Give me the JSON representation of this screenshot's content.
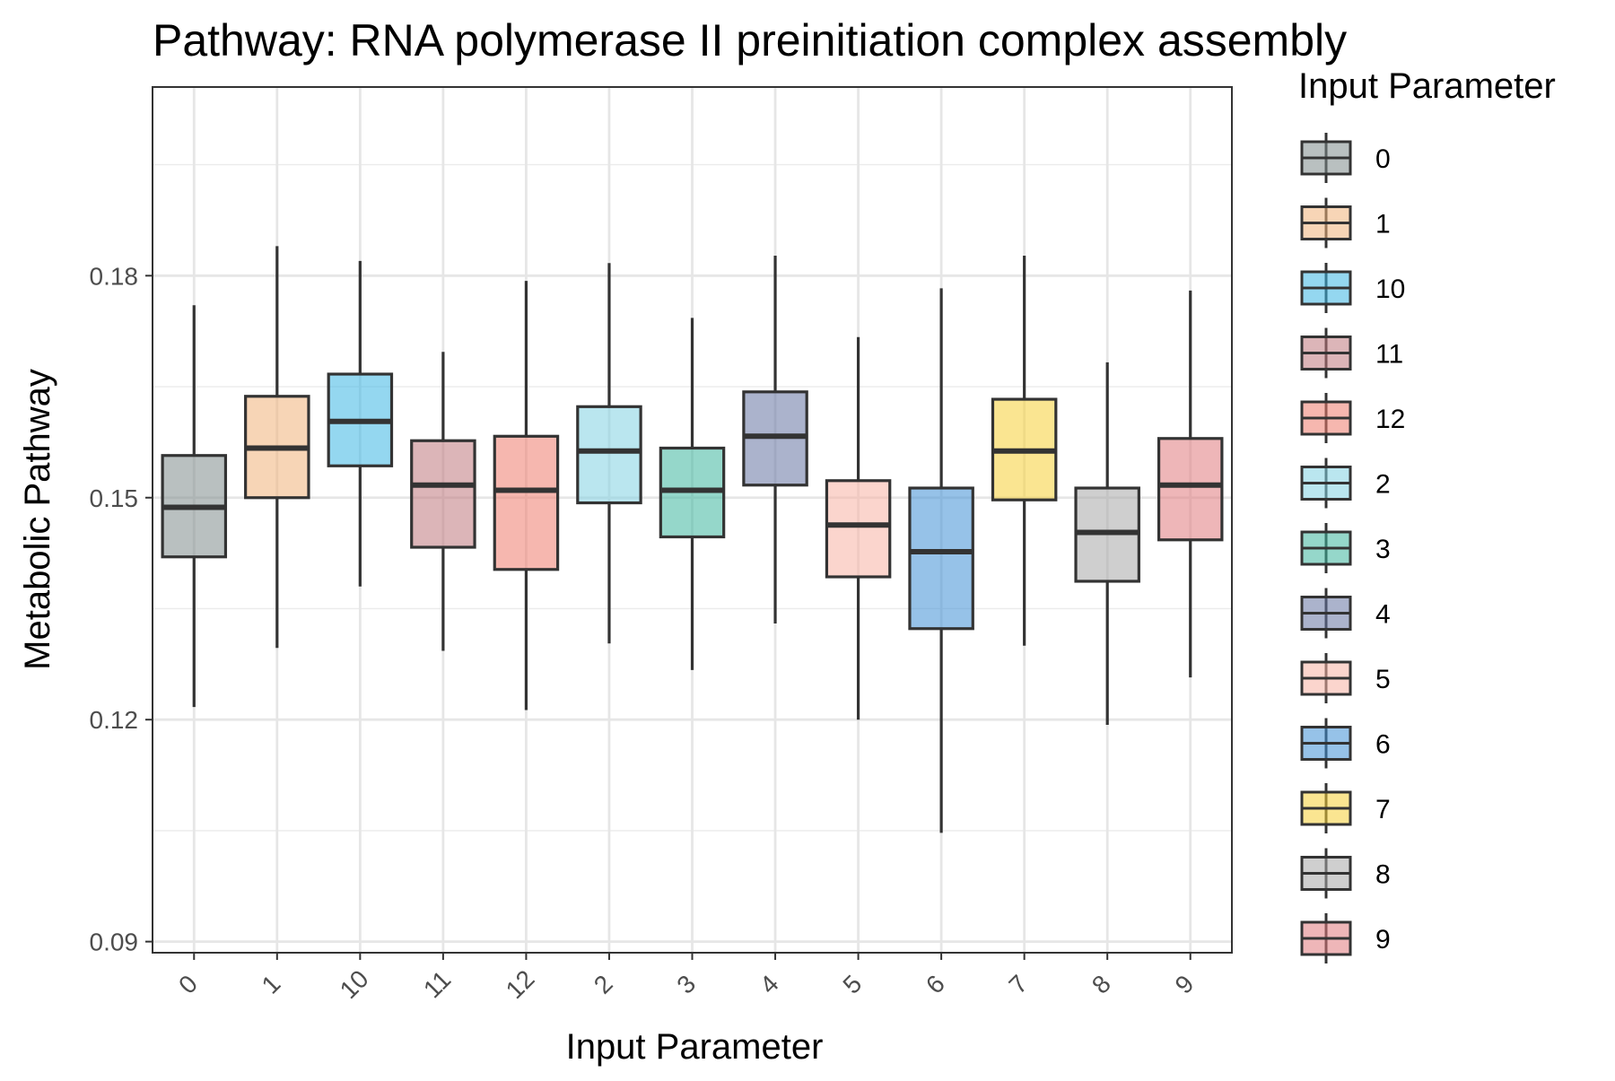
{
  "chart_data": {
    "type": "box",
    "title": "Pathway: RNA polymerase II preinitiation complex assembly",
    "xlabel": "Input Parameter",
    "ylabel": "Metabolic Pathway",
    "ylim": [
      0.0885,
      0.2055
    ],
    "yticks": [
      0.09,
      0.12,
      0.15,
      0.18
    ],
    "ytick_labels": [
      "0.09",
      "0.12",
      "0.15",
      "0.18"
    ],
    "grid": true,
    "legend": {
      "title": "Input Parameter",
      "position": "right"
    },
    "categories": [
      "0",
      "1",
      "10",
      "11",
      "12",
      "2",
      "3",
      "4",
      "5",
      "6",
      "7",
      "8",
      "9"
    ],
    "series": [
      {
        "category": "0",
        "color": "#7F8C8D",
        "whisker_low": 0.1217,
        "q1": 0.142,
        "median": 0.1487,
        "q3": 0.1557,
        "whisker_high": 0.176
      },
      {
        "category": "1",
        "color": "#F0B27A",
        "whisker_low": 0.1297,
        "q1": 0.15,
        "median": 0.1567,
        "q3": 0.1637,
        "whisker_high": 0.184
      },
      {
        "category": "10",
        "color": "#3DB7E4",
        "whisker_low": 0.138,
        "q1": 0.1543,
        "median": 0.1603,
        "q3": 0.1667,
        "whisker_high": 0.182
      },
      {
        "category": "11",
        "color": "#C0787E",
        "whisker_low": 0.1293,
        "q1": 0.1433,
        "median": 0.1517,
        "q3": 0.1577,
        "whisker_high": 0.1697
      },
      {
        "category": "12",
        "color": "#EF7B6E",
        "whisker_low": 0.1213,
        "q1": 0.1403,
        "median": 0.151,
        "q3": 0.1583,
        "whisker_high": 0.1793
      },
      {
        "category": "2",
        "color": "#82D2E2",
        "whisker_low": 0.1303,
        "q1": 0.1493,
        "median": 0.1563,
        "q3": 0.1623,
        "whisker_high": 0.1817
      },
      {
        "category": "3",
        "color": "#3EB79E",
        "whisker_low": 0.1267,
        "q1": 0.1447,
        "median": 0.151,
        "q3": 0.1567,
        "whisker_high": 0.1743
      },
      {
        "category": "4",
        "color": "#6674A2",
        "whisker_low": 0.133,
        "q1": 0.1517,
        "median": 0.1583,
        "q3": 0.1643,
        "whisker_high": 0.1827
      },
      {
        "category": "5",
        "color": "#F8B3A4",
        "whisker_low": 0.12,
        "q1": 0.1393,
        "median": 0.1463,
        "q3": 0.1523,
        "whisker_high": 0.1717
      },
      {
        "category": "6",
        "color": "#3F8FD6",
        "whisker_low": 0.1047,
        "q1": 0.1323,
        "median": 0.1427,
        "q3": 0.1513,
        "whisker_high": 0.1783
      },
      {
        "category": "7",
        "color": "#F6CF37",
        "whisker_low": 0.13,
        "q1": 0.1497,
        "median": 0.1563,
        "q3": 0.1633,
        "whisker_high": 0.1827
      },
      {
        "category": "8",
        "color": "#A8A8A8",
        "whisker_low": 0.1193,
        "q1": 0.1387,
        "median": 0.1453,
        "q3": 0.1513,
        "whisker_high": 0.1683
      },
      {
        "category": "9",
        "color": "#E07A7E",
        "whisker_low": 0.1257,
        "q1": 0.1443,
        "median": 0.1517,
        "q3": 0.158,
        "whisker_high": 0.178
      }
    ]
  }
}
